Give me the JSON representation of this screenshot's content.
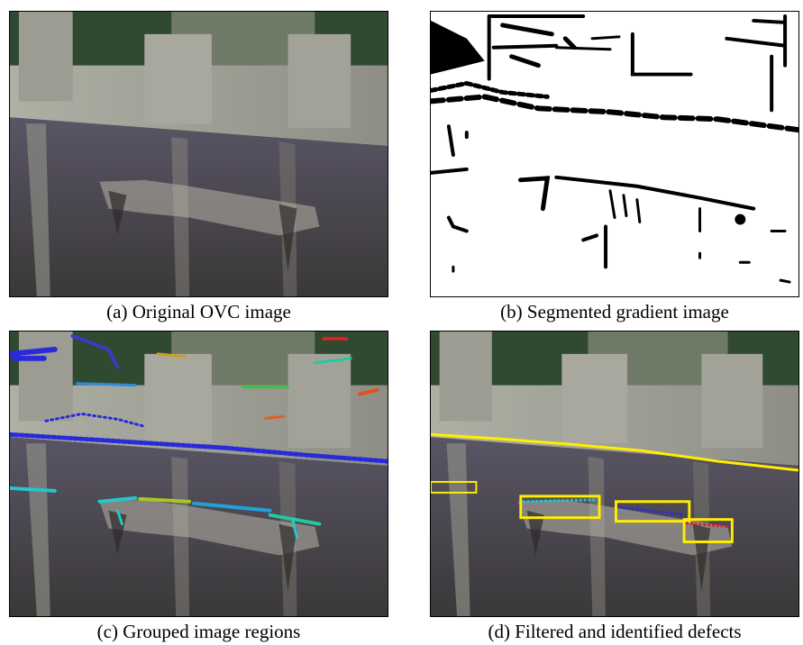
{
  "figure": {
    "panels": [
      {
        "id": "a",
        "caption": "(a) Original OVC image"
      },
      {
        "id": "b",
        "caption": "(b) Segmented gradient image"
      },
      {
        "id": "c",
        "caption": "(c) Grouped image regions"
      },
      {
        "id": "d",
        "caption": "(d) Filtered and identified defects"
      }
    ],
    "colors": {
      "concrete_top": "#b9b6ac",
      "concrete_face": "#4a4654",
      "forest": "#2f4a30",
      "highlight_box": "#ffee00",
      "group_blue": "#2a2ad8",
      "group_cyan": "#22c8c8",
      "group_red": "#e02020"
    }
  }
}
